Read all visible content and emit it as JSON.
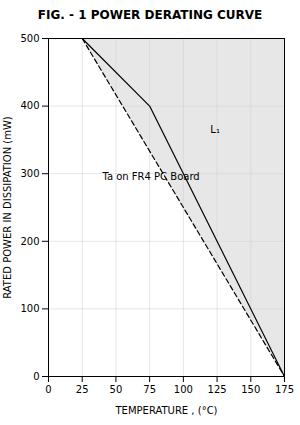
{
  "chart_data": {
    "type": "line",
    "title": "FIG. - 1  POWER DERATING CURVE",
    "x_label": "TEMPERATURE , (°C)",
    "y_label": "RATED POWER IN DISSIPATION (mW)",
    "xlim": [
      0,
      175
    ],
    "ylim": [
      0,
      500
    ],
    "xticks": [
      0,
      25,
      50,
      75,
      100,
      125,
      150,
      175
    ],
    "yticks": [
      0,
      100,
      200,
      300,
      400,
      500
    ],
    "grid": true,
    "series": [
      {
        "x": [
          25,
          175
        ],
        "values": [
          500,
          0
        ],
        "color": "#000000",
        "line_style": "dashed"
      },
      {
        "x": [
          25,
          75,
          175
        ],
        "values": [
          500,
          400,
          0
        ],
        "color": "#000000",
        "line_style": "solid"
      }
    ],
    "annotations": [
      {
        "text": "L₁",
        "x": 120,
        "y": 360
      },
      {
        "text": "Ta on FR4 PC Board",
        "x": 40,
        "y": 290
      }
    ]
  }
}
